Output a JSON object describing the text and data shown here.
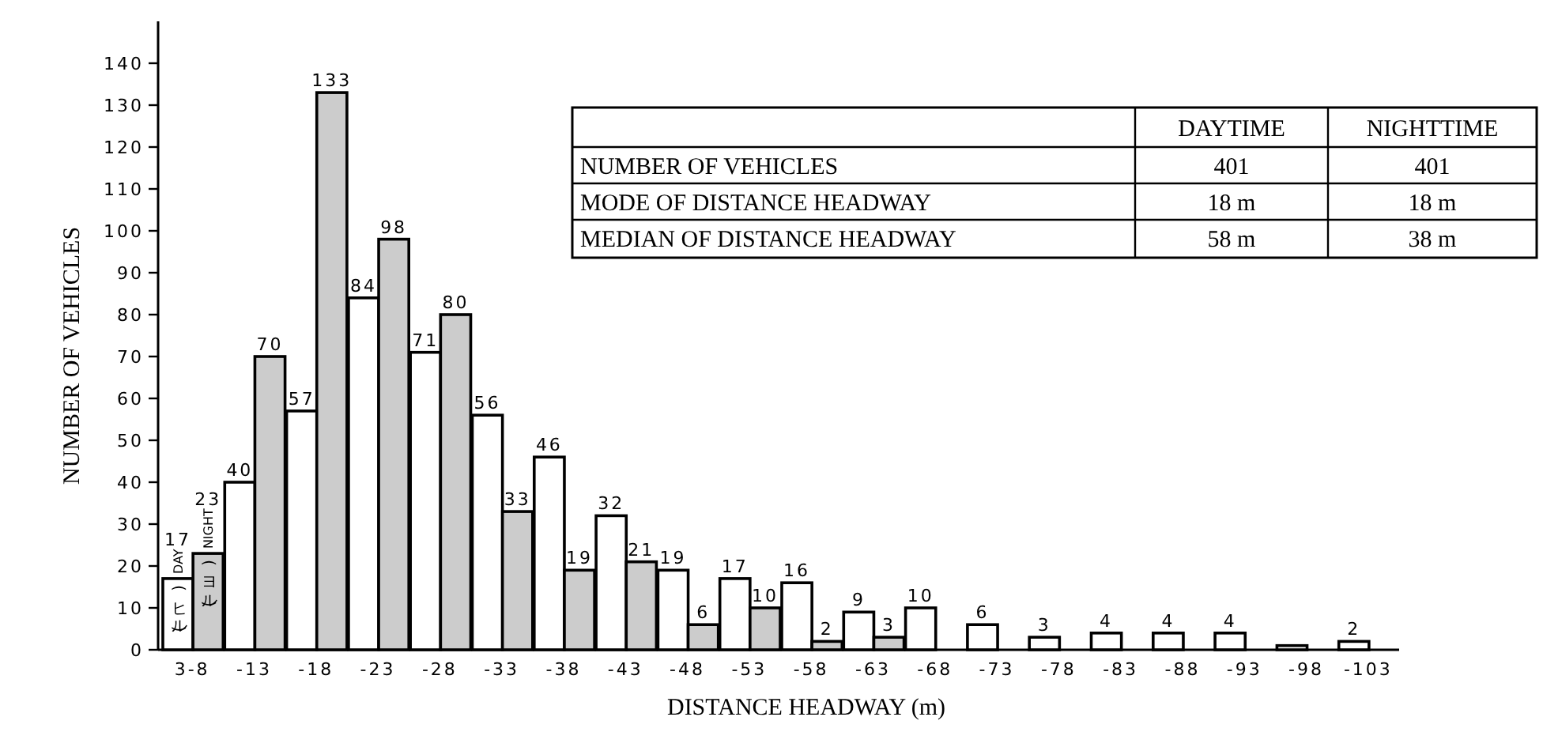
{
  "chart_data": {
    "type": "bar",
    "xlabel": "DISTANCE HEADWAY (m)",
    "ylabel": "NUMBER OF VEHICLES",
    "categories": [
      "3-8",
      "-13",
      "-18",
      "-23",
      "-28",
      "-33",
      "-38",
      "-43",
      "-48",
      "-53",
      "-58",
      "-63",
      "-68",
      "-73",
      "-78",
      "-83",
      "-88",
      "-93",
      "-98",
      "-103"
    ],
    "series": [
      {
        "name": "DAY",
        "color": "#ffffff",
        "values": [
          17,
          40,
          57,
          84,
          71,
          56,
          46,
          32,
          19,
          17,
          16,
          9,
          10,
          6,
          3,
          4,
          4,
          4,
          1,
          2
        ],
        "value_labels": [
          "17",
          "40",
          "57",
          "84",
          "71",
          "56",
          "46",
          "32",
          "19",
          "17",
          "16",
          "9",
          "10",
          "6",
          "3",
          "4",
          "4",
          "4",
          null,
          "2"
        ]
      },
      {
        "name": "NIGHT",
        "color": "#cccccc",
        "values": [
          23,
          70,
          133,
          98,
          80,
          33,
          19,
          21,
          6,
          10,
          2,
          3,
          null,
          null,
          null,
          null,
          null,
          null,
          null,
          null
        ],
        "value_labels": [
          "23",
          "70",
          "133",
          "98",
          "80",
          "33",
          "19",
          "21",
          "6",
          "10",
          "2",
          "3",
          null,
          null,
          null,
          null,
          null,
          null,
          null,
          null
        ]
      }
    ],
    "ylim": [
      0,
      150
    ],
    "yticks": [
      0,
      10,
      20,
      30,
      40,
      50,
      60,
      70,
      80,
      90,
      100,
      110,
      120,
      130,
      140
    ],
    "annotations": [
      "(ヒル)",
      "(ヨル)",
      "DAYTIME",
      "NIGHTTIME",
      "NUMBER OF VEHICLES",
      "401",
      "401",
      "MODE OF DISTANCE HEADWAY",
      "18 m",
      "18 m",
      "MEDIAN OF DISTANCE HEADWAY",
      "58 m",
      "38 m"
    ]
  }
}
